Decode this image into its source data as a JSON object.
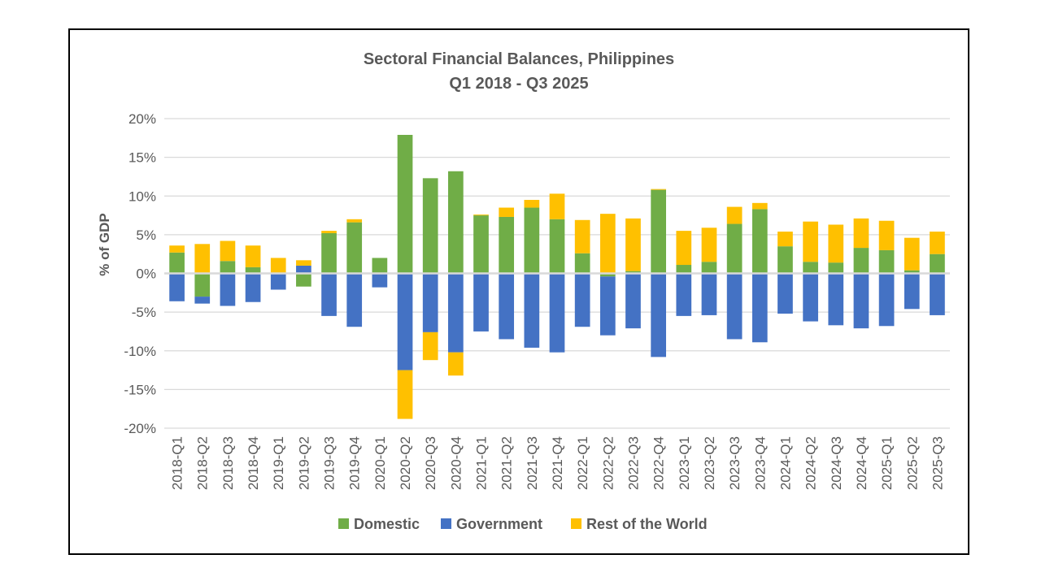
{
  "chart_data": {
    "type": "bar",
    "stacked": true,
    "title": "Sectoral Financial Balances, Philippines",
    "subtitle": "Q1 2018 - Q3 2025",
    "xlabel": "",
    "ylabel": "% of GDP",
    "ylim": [
      -20,
      20
    ],
    "yticks": [
      20,
      15,
      10,
      5,
      0,
      -5,
      -10,
      -15,
      -20
    ],
    "ytick_labels": [
      "20%",
      "15%",
      "10%",
      "5%",
      "0%",
      "-5%",
      "-10%",
      "-15%",
      "-20%"
    ],
    "grid": true,
    "legend_position": "bottom",
    "categories": [
      "2018-Q1",
      "2018-Q2",
      "2018-Q3",
      "2018-Q4",
      "2019-Q1",
      "2019-Q2",
      "2019-Q3",
      "2019-Q4",
      "2020-Q1",
      "2020-Q2",
      "2020-Q3",
      "2020-Q4",
      "2021-Q1",
      "2021-Q2",
      "2021-Q3",
      "2021-Q4",
      "2022-Q1",
      "2022-Q2",
      "2022-Q3",
      "2022-Q4",
      "2023-Q1",
      "2023-Q2",
      "2023-Q3",
      "2023-Q4",
      "2024-Q1",
      "2024-Q2",
      "2024-Q3",
      "2024-Q4",
      "2025-Q1",
      "2025-Q2",
      "2025-Q3"
    ],
    "series": [
      {
        "name": "Domestic",
        "color": "#70AD47",
        "values": [
          2.7,
          -3.0,
          1.6,
          0.8,
          -0.1,
          -1.7,
          5.2,
          6.6,
          2.0,
          17.9,
          12.3,
          13.2,
          7.5,
          7.3,
          8.5,
          7.0,
          2.6,
          -0.4,
          0.3,
          10.8,
          1.1,
          1.5,
          6.4,
          8.3,
          3.5,
          1.5,
          1.4,
          3.3,
          3.0,
          0.4,
          2.5
        ]
      },
      {
        "name": "Government",
        "color": "#4472C4",
        "values": [
          -3.6,
          -0.9,
          -4.2,
          -3.7,
          -2.0,
          1.0,
          -5.5,
          -6.9,
          -1.8,
          -12.5,
          -7.6,
          -10.2,
          -7.5,
          -8.5,
          -9.6,
          -10.2,
          -6.9,
          -7.6,
          -7.1,
          -10.8,
          -5.5,
          -5.4,
          -8.5,
          -8.9,
          -5.2,
          -6.2,
          -6.7,
          -7.1,
          -6.8,
          -4.6,
          -5.4
        ]
      },
      {
        "name": "Rest of the World",
        "color": "#FFC000",
        "values": [
          0.9,
          3.8,
          2.6,
          2.8,
          2.0,
          0.7,
          0.3,
          0.4,
          0.0,
          -6.3,
          -3.6,
          -3.0,
          0.1,
          1.2,
          1.0,
          3.3,
          4.3,
          7.7,
          6.8,
          0.1,
          4.4,
          4.4,
          2.2,
          0.8,
          1.9,
          5.2,
          4.9,
          3.8,
          3.8,
          4.2,
          2.9
        ]
      }
    ]
  }
}
